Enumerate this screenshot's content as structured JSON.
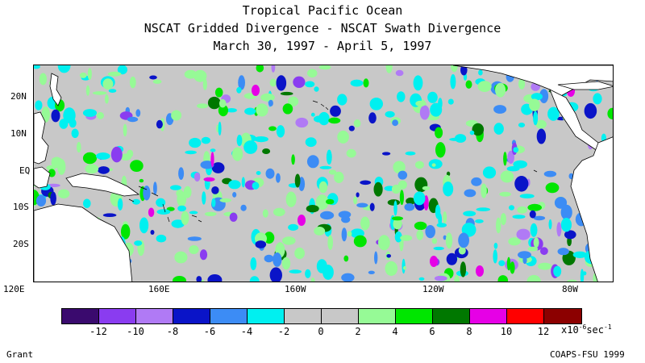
{
  "title": {
    "line1": "Tropical Pacific Ocean",
    "line2": "NSCAT Gridded Divergence - NSCAT Swath Divergence",
    "line3": "March 30, 1997 - April 5, 1997"
  },
  "lat_labels": [
    "20N",
    "10N",
    "EQ",
    "10S",
    "20S"
  ],
  "lon_labels": [
    "120E",
    "160E",
    "160W",
    "120W",
    "80W"
  ],
  "colorbar": {
    "colors": [
      "#3a0a6e",
      "#8a3cf0",
      "#b07af5",
      "#0a14c8",
      "#3c8cf5",
      "#00f0f0",
      "#c8c8c8",
      "#c8c8c8",
      "#96fa96",
      "#00e600",
      "#007800",
      "#e600e6",
      "#ff0000",
      "#8c0000"
    ],
    "ticks": [
      "-12",
      "-10",
      "-8",
      "-6",
      "-4",
      "-2",
      "0",
      "2",
      "4",
      "6",
      "8",
      "10",
      "12"
    ],
    "units_prefix": "x10",
    "units_exp": "-6",
    "units_suffix": "sec",
    "units_suffix_exp": "-1"
  },
  "footer": {
    "left": "Grant",
    "right": "COAPS-FSU 1999"
  }
}
